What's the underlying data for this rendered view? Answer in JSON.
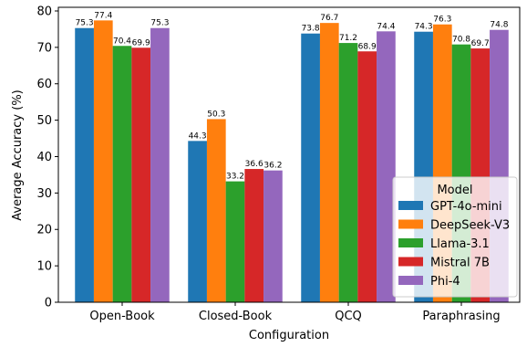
{
  "chart_data": {
    "type": "bar",
    "title": "",
    "xlabel": "Configuration",
    "ylabel": "Average Accuracy (%)",
    "ylim": [
      0,
      81
    ],
    "yticks": [
      0,
      10,
      20,
      30,
      40,
      50,
      60,
      70,
      80
    ],
    "categories": [
      "Open-Book",
      "Closed-Book",
      "QCQ",
      "Paraphrasing"
    ],
    "legend_title": "Model",
    "legend_position": "lower-right",
    "grid": false,
    "series": [
      {
        "name": "GPT-4o-mini",
        "color": "#1f77b4",
        "values": [
          75.3,
          44.3,
          73.8,
          74.3
        ],
        "labels": [
          "75.3",
          "44.3",
          "73.8",
          "74.3"
        ]
      },
      {
        "name": "DeepSeek-V3",
        "color": "#ff7f0e",
        "values": [
          77.4,
          50.3,
          76.7,
          76.3
        ],
        "labels": [
          "77.4",
          "50.3",
          "76.7",
          "76.3"
        ]
      },
      {
        "name": "Llama-3.1",
        "color": "#2ca02c",
        "values": [
          70.4,
          33.2,
          71.2,
          70.8
        ],
        "labels": [
          "70.4",
          "33.2",
          "71.2",
          "70.8"
        ]
      },
      {
        "name": "Mistral 7B",
        "color": "#d62728",
        "values": [
          69.9,
          36.6,
          68.9,
          69.7
        ],
        "labels": [
          "69.9",
          "36.6",
          "68.9",
          "69.7"
        ]
      },
      {
        "name": "Phi-4",
        "color": "#9467bd",
        "values": [
          75.3,
          36.2,
          74.4,
          74.8
        ],
        "labels": [
          "75.3",
          "36.2",
          "74.4",
          "74.8"
        ]
      }
    ]
  }
}
